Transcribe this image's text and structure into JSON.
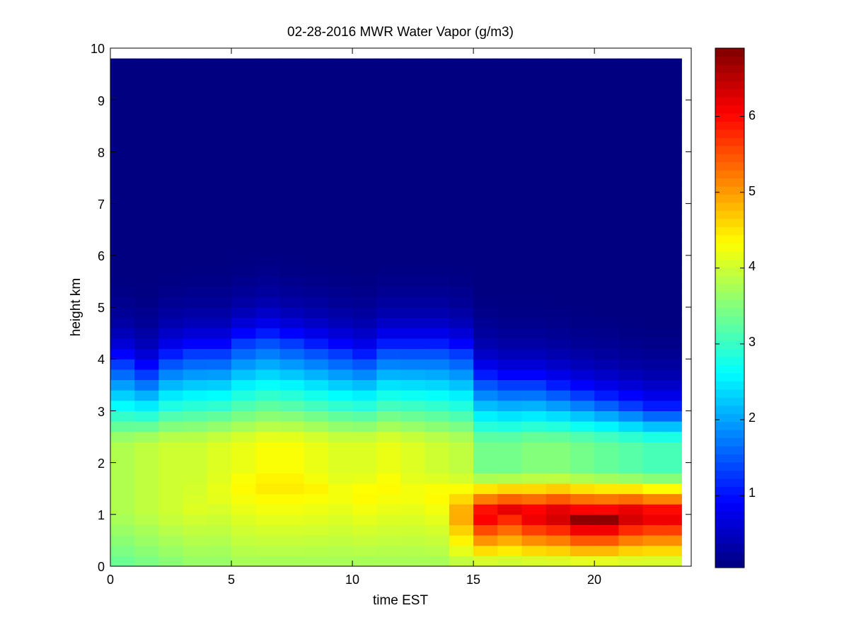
{
  "chart_data": {
    "type": "heatmap",
    "title": "02-28-2016 MWR Water Vapor (g/m3)",
    "xlabel": "time EST",
    "ylabel": "height km",
    "xlim": [
      0,
      24
    ],
    "ylim": [
      0,
      10
    ],
    "x_ticks": [
      "0",
      "5",
      "10",
      "15",
      "20"
    ],
    "y_ticks": [
      "0",
      "1",
      "2",
      "3",
      "4",
      "5",
      "6",
      "7",
      "8",
      "9",
      "10"
    ],
    "colorbar": {
      "colormap": "jet",
      "range": [
        0.05,
        6.9
      ],
      "ticks": [
        "1",
        "2",
        "3",
        "4",
        "5",
        "6"
      ]
    },
    "time_hours": [
      0,
      1,
      2,
      3,
      4,
      5,
      6,
      7,
      8,
      9,
      10,
      11,
      12,
      13,
      14,
      15,
      16,
      17,
      18,
      19,
      20,
      21,
      22,
      23
    ],
    "height_km": [
      0.1,
      0.3,
      0.5,
      0.7,
      0.9,
      1.1,
      1.3,
      1.5,
      1.7,
      1.9,
      2.1,
      2.3,
      2.5,
      2.7,
      2.9,
      3.1,
      3.3,
      3.5,
      3.7,
      3.9,
      4.1,
      4.3,
      4.5,
      4.7,
      4.9,
      5.1,
      5.3,
      5.5,
      5.7,
      5.9,
      6.1,
      6.3,
      6.5,
      6.7,
      6.9,
      7.1,
      7.3,
      7.5,
      7.7,
      7.9,
      8.1,
      8.3,
      8.5,
      8.7,
      8.9,
      9.1,
      9.3,
      9.5,
      9.7
    ],
    "profile_peaks": [
      {
        "hour": 0,
        "surface": 3.3,
        "peak": 3.8,
        "top": 3.8
      },
      {
        "hour": 1,
        "surface": 3.4,
        "peak": 3.9,
        "top": 3.9
      },
      {
        "hour": 2,
        "surface": 3.5,
        "peak": 4.0,
        "top": 4.0
      },
      {
        "hour": 3,
        "surface": 3.6,
        "peak": 4.1,
        "top": 4.0
      },
      {
        "hour": 4,
        "surface": 3.6,
        "peak": 4.2,
        "top": 4.1
      },
      {
        "hour": 5,
        "surface": 3.7,
        "peak": 4.4,
        "top": 4.2
      },
      {
        "hour": 6,
        "surface": 3.7,
        "peak": 4.5,
        "top": 4.3
      },
      {
        "hour": 7,
        "surface": 3.7,
        "peak": 4.5,
        "top": 4.3
      },
      {
        "hour": 8,
        "surface": 3.7,
        "peak": 4.4,
        "top": 4.2
      },
      {
        "hour": 9,
        "surface": 3.7,
        "peak": 4.3,
        "top": 4.1
      },
      {
        "hour": 10,
        "surface": 3.7,
        "peak": 4.4,
        "top": 4.1
      },
      {
        "hour": 11,
        "surface": 3.7,
        "peak": 4.4,
        "top": 4.2
      },
      {
        "hour": 12,
        "surface": 3.7,
        "peak": 4.3,
        "top": 4.1
      },
      {
        "hour": 13,
        "surface": 3.7,
        "peak": 4.4,
        "top": 4.0
      },
      {
        "hour": 14,
        "surface": 3.8,
        "peak": 5.0,
        "top": 3.9
      },
      {
        "hour": 15,
        "surface": 3.8,
        "peak": 6.3,
        "top": 3.4
      },
      {
        "hour": 16,
        "surface": 3.8,
        "peak": 6.2,
        "top": 3.4
      },
      {
        "hour": 17,
        "surface": 3.8,
        "peak": 6.4,
        "top": 3.5
      },
      {
        "hour": 18,
        "surface": 3.8,
        "peak": 6.6,
        "top": 3.5
      },
      {
        "hour": 19,
        "surface": 3.8,
        "peak": 6.8,
        "top": 3.4
      },
      {
        "hour": 20,
        "surface": 3.8,
        "peak": 6.8,
        "top": 3.3
      },
      {
        "hour": 21,
        "surface": 3.8,
        "peak": 6.6,
        "top": 3.2
      },
      {
        "hour": 22,
        "surface": 3.8,
        "peak": 6.4,
        "top": 3.1
      },
      {
        "hour": 23,
        "surface": 3.8,
        "peak": 6.4,
        "top": 3.1
      }
    ],
    "moist_layer_top_km": [
      3.9,
      3.7,
      4.0,
      4.1,
      4.1,
      4.3,
      4.4,
      4.3,
      4.2,
      4.1,
      4.0,
      4.2,
      4.2,
      4.2,
      4.1,
      3.6,
      3.5,
      3.5,
      3.4,
      3.3,
      3.2,
      3.1,
      3.0,
      3.0
    ],
    "peak_height_km": [
      1.0,
      1.0,
      1.0,
      1.1,
      1.4,
      1.6,
      1.6,
      1.6,
      1.5,
      1.4,
      1.4,
      1.6,
      1.4,
      1.4,
      1.0,
      1.0,
      1.1,
      1.0,
      1.0,
      0.9,
      0.9,
      1.0,
      1.0,
      1.0
    ]
  }
}
